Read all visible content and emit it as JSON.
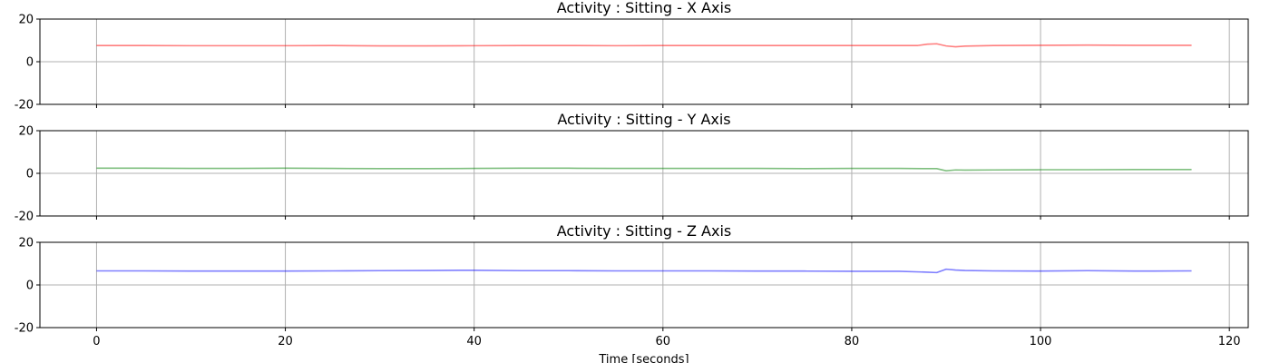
{
  "chart_data": [
    {
      "type": "line",
      "title": "Activity : Sitting - X Axis",
      "xlabel": "",
      "ylabel": "",
      "xlim": [
        -6,
        122
      ],
      "ylim": [
        -20,
        20
      ],
      "xticks": [
        0,
        20,
        40,
        60,
        80,
        100,
        120
      ],
      "yticks": [
        -20,
        0,
        20
      ],
      "show_xtick_labels": false,
      "grid": true,
      "color": "#ff0000",
      "series": [
        {
          "x": [
            0,
            5,
            10,
            15,
            20,
            25,
            30,
            35,
            40,
            45,
            50,
            55,
            60,
            65,
            70,
            75,
            80,
            85,
            87,
            88,
            89,
            90,
            91,
            92,
            95,
            100,
            105,
            110,
            116
          ],
          "values": [
            7.6,
            7.6,
            7.5,
            7.5,
            7.5,
            7.6,
            7.4,
            7.4,
            7.5,
            7.6,
            7.6,
            7.5,
            7.6,
            7.6,
            7.6,
            7.6,
            7.6,
            7.6,
            7.6,
            8.2,
            8.4,
            7.4,
            7.0,
            7.3,
            7.6,
            7.7,
            7.8,
            7.7,
            7.7
          ]
        }
      ]
    },
    {
      "type": "line",
      "title": "Activity : Sitting - Y Axis",
      "xlabel": "",
      "ylabel": "",
      "xlim": [
        -6,
        122
      ],
      "ylim": [
        -20,
        20
      ],
      "xticks": [
        0,
        20,
        40,
        60,
        80,
        100,
        120
      ],
      "yticks": [
        -20,
        0,
        20
      ],
      "show_xtick_labels": false,
      "grid": true,
      "color": "#008000",
      "series": [
        {
          "x": [
            0,
            5,
            10,
            15,
            20,
            25,
            30,
            35,
            40,
            45,
            50,
            55,
            60,
            65,
            70,
            75,
            80,
            85,
            88,
            89,
            90,
            91,
            92,
            95,
            100,
            105,
            110,
            116
          ],
          "values": [
            2.4,
            2.4,
            2.3,
            2.3,
            2.4,
            2.3,
            2.2,
            2.2,
            2.3,
            2.4,
            2.4,
            2.3,
            2.3,
            2.3,
            2.3,
            2.2,
            2.3,
            2.3,
            2.2,
            2.2,
            1.2,
            1.6,
            1.5,
            1.6,
            1.7,
            1.7,
            1.8,
            1.8
          ]
        }
      ]
    },
    {
      "type": "line",
      "title": "Activity : Sitting - Z Axis",
      "xlabel": "Time [seconds]",
      "ylabel": "",
      "xlim": [
        -6,
        122
      ],
      "ylim": [
        -20,
        20
      ],
      "xticks": [
        0,
        20,
        40,
        60,
        80,
        100,
        120
      ],
      "yticks": [
        -20,
        0,
        20
      ],
      "show_xtick_labels": true,
      "grid": true,
      "color": "#0000ff",
      "series": [
        {
          "x": [
            0,
            5,
            10,
            15,
            20,
            25,
            30,
            35,
            40,
            45,
            50,
            55,
            60,
            65,
            70,
            75,
            80,
            85,
            88,
            89,
            90,
            91,
            92,
            95,
            100,
            105,
            110,
            116
          ],
          "values": [
            6.6,
            6.6,
            6.5,
            6.5,
            6.5,
            6.6,
            6.7,
            6.8,
            6.9,
            6.7,
            6.7,
            6.6,
            6.6,
            6.6,
            6.5,
            6.5,
            6.4,
            6.4,
            6.0,
            5.8,
            7.4,
            7.0,
            6.8,
            6.6,
            6.5,
            6.7,
            6.5,
            6.6
          ]
        }
      ]
    }
  ]
}
